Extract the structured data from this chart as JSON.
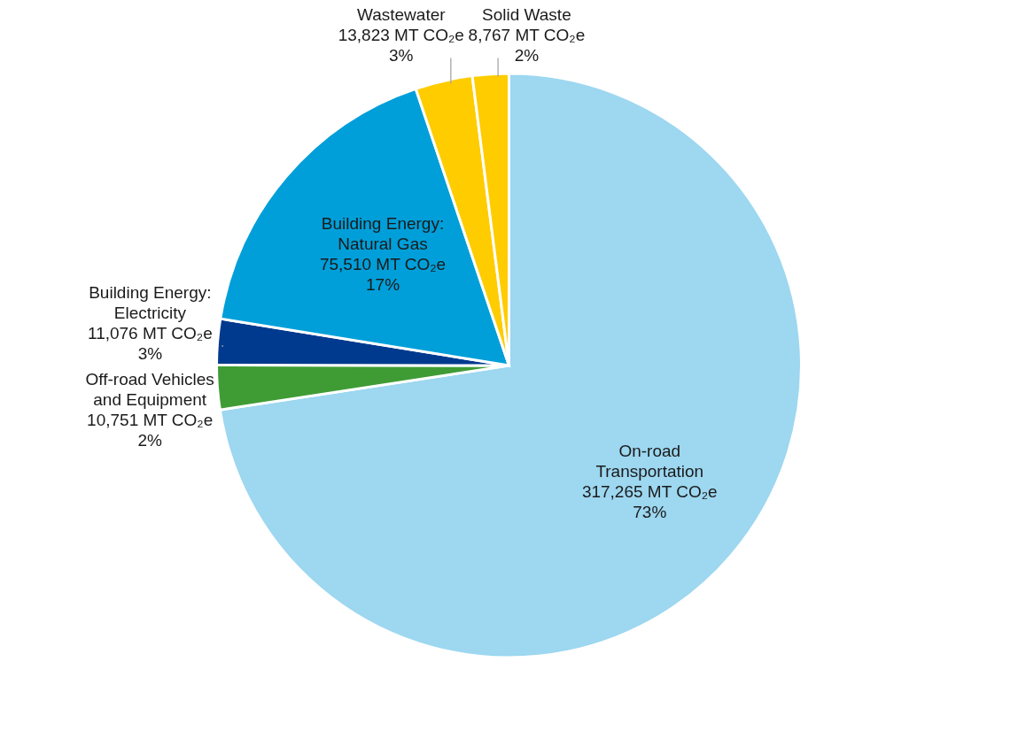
{
  "chart_data": {
    "type": "pie",
    "categories": [
      "On-road Transportation",
      "Off-road Vehicles and Equipment",
      "Building Energy: Electricity",
      "Building Energy: Natural Gas",
      "Wastewater",
      "Solid Waste"
    ],
    "values": [
      317265,
      10751,
      11076,
      75510,
      13823,
      8767
    ],
    "colors": [
      "#9dd7f0",
      "#3f9c35",
      "#003a8f",
      "#009fd9",
      "#ffcc00",
      "#ffcc00"
    ],
    "value_labels": [
      "317,265 MT CO₂e 73%",
      "10,751 MT CO₂e 2%",
      "11,076 MT CO₂e 3%",
      "75,510 MT CO₂e 17%",
      "13,823 MT CO₂e 3%",
      "8,767 MT CO₂e 2%"
    ]
  }
}
